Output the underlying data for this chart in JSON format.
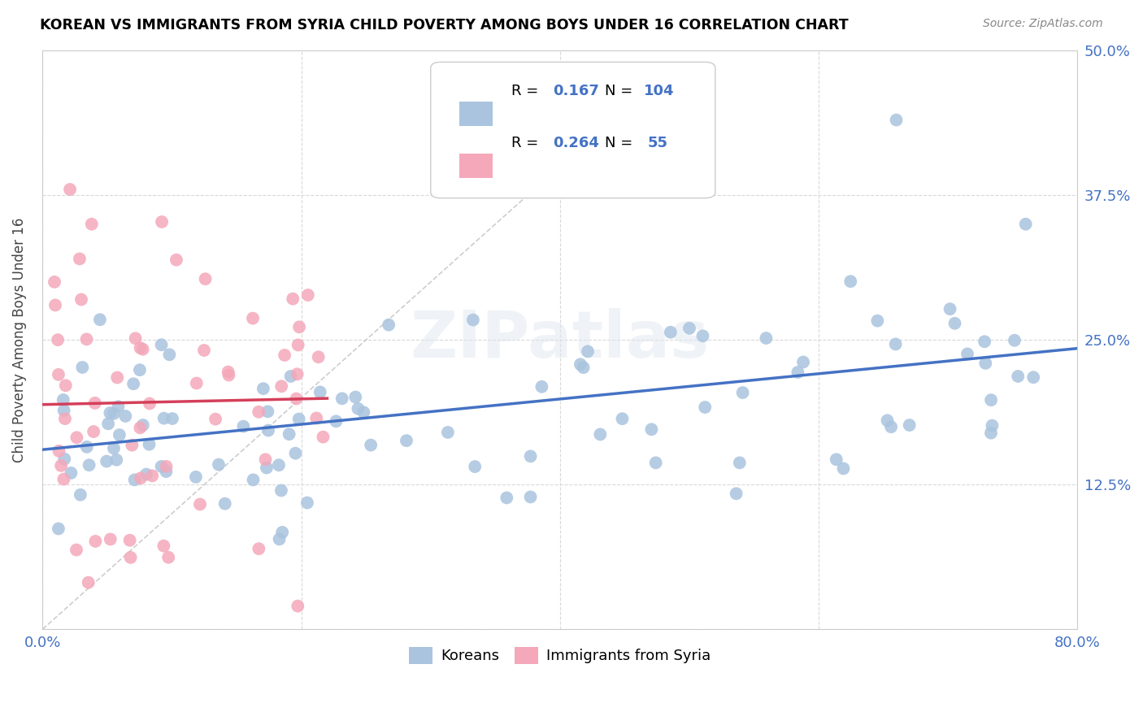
{
  "title": "KOREAN VS IMMIGRANTS FROM SYRIA CHILD POVERTY AMONG BOYS UNDER 16 CORRELATION CHART",
  "source": "Source: ZipAtlas.com",
  "ylabel": "Child Poverty Among Boys Under 16",
  "xlim": [
    0.0,
    0.8
  ],
  "ylim": [
    0.0,
    0.5
  ],
  "xticks": [
    0.0,
    0.2,
    0.4,
    0.6,
    0.8
  ],
  "xticklabels": [
    "0.0%",
    "",
    "",
    "",
    "80.0%"
  ],
  "yticks": [
    0.0,
    0.125,
    0.25,
    0.375,
    0.5
  ],
  "yticklabels_right": [
    "",
    "12.5%",
    "25.0%",
    "37.5%",
    "50.0%"
  ],
  "korean_R": 0.167,
  "korean_N": 104,
  "syria_R": 0.264,
  "syria_N": 55,
  "korean_color": "#aac4df",
  "syria_color": "#f4a8ba",
  "trend_korean_color": "#4472c4",
  "trend_syria_color": "#d43f5a",
  "diagonal_color": "#c8c8c8",
  "watermark": "ZIPatlas",
  "background_color": "#ffffff",
  "grid_color": "#d5d5d5",
  "label_color": "#4472c4"
}
